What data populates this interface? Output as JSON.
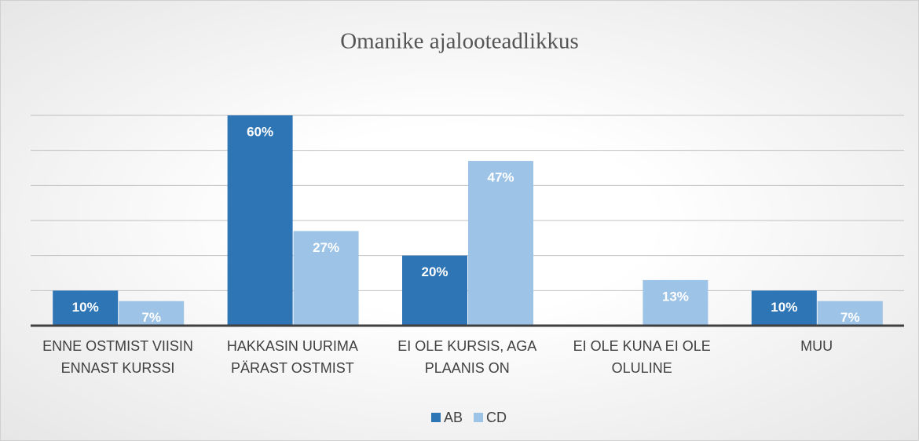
{
  "chart_data": {
    "type": "bar",
    "title": "Omanike ajalooteadlikkus",
    "categories": [
      "ENNE OSTMIST VIISIN ENNAST KURSSI",
      "HAKKASIN UURIMA PÄRAST OSTMIST",
      "EI OLE KURSIS, AGA PLAANIS ON",
      "EI OLE KUNA EI OLE OLULINE",
      "MUU"
    ],
    "series": [
      {
        "name": "AB",
        "color": "#2e75b6",
        "values": [
          10,
          60,
          20,
          null,
          10
        ],
        "value_labels": [
          "10%",
          "60%",
          "20%",
          null,
          "10%"
        ]
      },
      {
        "name": "CD",
        "color": "#9dc3e6",
        "values": [
          7,
          27,
          47,
          13,
          7
        ],
        "value_labels": [
          "7%",
          "27%",
          "47%",
          "13%",
          "7%"
        ]
      }
    ],
    "ylim": [
      0,
      60
    ],
    "yticks": [
      0,
      10,
      20,
      30,
      40,
      50,
      60
    ],
    "grid": true,
    "legend": "bottom"
  }
}
